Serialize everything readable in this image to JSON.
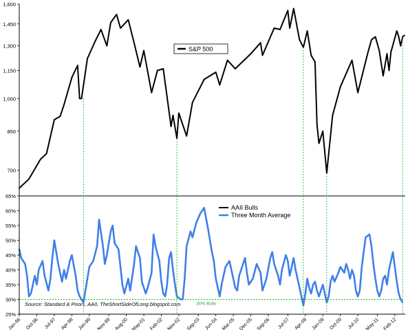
{
  "chart_data": [
    {
      "type": "line",
      "panel": "top",
      "title": "",
      "xlabel": "",
      "ylabel": "",
      "ylim": [
        620,
        1600
      ],
      "yscale": "log",
      "yticks": [
        700,
        850,
        1000,
        1150,
        1300,
        1450,
        1600
      ],
      "ytick_labels": [
        "700",
        "850",
        "1,000",
        "1,150",
        "1,300",
        "1,450",
        "1,600"
      ],
      "legend": "top-center",
      "series": [
        {
          "name": "S&P 500",
          "color": "#000000",
          "points": [
            [
              "1996-01",
              640
            ],
            [
              "1996-06",
              670
            ],
            [
              "1996-12",
              740
            ],
            [
              "1997-03",
              760
            ],
            [
              "1997-07",
              900
            ],
            [
              "1997-10",
              915
            ],
            [
              "1997-12",
              970
            ],
            [
              "1998-04",
              1110
            ],
            [
              "1998-07",
              1180
            ],
            [
              "1998-08",
              1000
            ],
            [
              "1998-09",
              1000
            ],
            [
              "1998-12",
              1220
            ],
            [
              "1999-04",
              1330
            ],
            [
              "1999-07",
              1410
            ],
            [
              "1999-10",
              1300
            ],
            [
              "1999-12",
              1460
            ],
            [
              "2000-03",
              1520
            ],
            [
              "2000-05",
              1420
            ],
            [
              "2000-09",
              1480
            ],
            [
              "2000-12",
              1320
            ],
            [
              "2001-03",
              1170
            ],
            [
              "2001-05",
              1270
            ],
            [
              "2001-09",
              1030
            ],
            [
              "2001-12",
              1150
            ],
            [
              "2002-03",
              1160
            ],
            [
              "2002-07",
              870
            ],
            [
              "2002-08",
              920
            ],
            [
              "2002-10",
              820
            ],
            [
              "2002-11",
              930
            ],
            [
              "2003-03",
              830
            ],
            [
              "2003-06",
              980
            ],
            [
              "2003-12",
              1100
            ],
            [
              "2004-06",
              1140
            ],
            [
              "2004-08",
              1070
            ],
            [
              "2004-12",
              1210
            ],
            [
              "2005-04",
              1160
            ],
            [
              "2005-12",
              1250
            ],
            [
              "2006-05",
              1320
            ],
            [
              "2006-06",
              1240
            ],
            [
              "2006-12",
              1420
            ],
            [
              "2007-03",
              1410
            ],
            [
              "2007-07",
              1550
            ],
            [
              "2007-08",
              1420
            ],
            [
              "2007-10",
              1565
            ],
            [
              "2008-01",
              1340
            ],
            [
              "2008-03",
              1290
            ],
            [
              "2008-05",
              1400
            ],
            [
              "2008-07",
              1240
            ],
            [
              "2008-09",
              1200
            ],
            [
              "2008-10",
              880
            ],
            [
              "2008-11",
              800
            ],
            [
              "2009-01",
              850
            ],
            [
              "2009-03",
              690
            ],
            [
              "2009-06",
              920
            ],
            [
              "2009-10",
              1060
            ],
            [
              "2010-04",
              1210
            ],
            [
              "2010-07",
              1030
            ],
            [
              "2010-12",
              1250
            ],
            [
              "2011-02",
              1340
            ],
            [
              "2011-04",
              1360
            ],
            [
              "2011-06",
              1270
            ],
            [
              "2011-08",
              1120
            ],
            [
              "2011-10",
              1250
            ],
            [
              "2011-11",
              1150
            ],
            [
              "2011-12",
              1260
            ],
            [
              "2012-03",
              1400
            ],
            [
              "2012-04",
              1360
            ],
            [
              "2012-05",
              1300
            ],
            [
              "2012-06",
              1360
            ],
            [
              "2012-07",
              1370
            ]
          ]
        }
      ]
    },
    {
      "type": "line",
      "panel": "bottom",
      "title": "",
      "xlabel": "",
      "ylabel": "",
      "ylim": [
        25,
        65
      ],
      "yticks": [
        25,
        30,
        35,
        40,
        45,
        50,
        55,
        60,
        65
      ],
      "ytick_labels": [
        "25%",
        "30%",
        "35%",
        "40%",
        "45%",
        "50%",
        "55%",
        "60%",
        "65%"
      ],
      "legend": "top-center",
      "annotations": [
        {
          "text": "30% Bulls",
          "color": "#22aa22",
          "x": "2003-08",
          "y": 30
        }
      ],
      "series": [
        {
          "name": "AAII Bulls",
          "color": "#000000",
          "points": []
        },
        {
          "name": "Three Month Average",
          "color": "#3f7fe8",
          "points": [
            [
              "1996-01",
              47
            ],
            [
              "1996-02",
              44
            ],
            [
              "1996-04",
              42
            ],
            [
              "1996-05",
              38
            ],
            [
              "1996-06",
              31
            ],
            [
              "1996-07",
              32
            ],
            [
              "1996-09",
              38
            ],
            [
              "1996-10",
              35
            ],
            [
              "1996-11",
              40
            ],
            [
              "1997-01",
              43
            ],
            [
              "1997-02",
              38
            ],
            [
              "1997-04",
              33
            ],
            [
              "1997-05",
              37
            ],
            [
              "1997-06",
              44
            ],
            [
              "1997-07",
              50
            ],
            [
              "1997-09",
              42
            ],
            [
              "1997-11",
              36
            ],
            [
              "1997-12",
              40
            ],
            [
              "1998-01",
              37
            ],
            [
              "1998-03",
              43
            ],
            [
              "1998-04",
              45
            ],
            [
              "1998-06",
              38
            ],
            [
              "1998-07",
              33
            ],
            [
              "1998-08",
              31
            ],
            [
              "1998-09",
              30
            ],
            [
              "1998-10",
              29
            ],
            [
              "1998-11",
              33
            ],
            [
              "1999-01",
              41
            ],
            [
              "1999-03",
              43
            ],
            [
              "1999-05",
              48
            ],
            [
              "1999-06",
              57
            ],
            [
              "1999-08",
              48
            ],
            [
              "1999-09",
              42
            ],
            [
              "1999-10",
              45
            ],
            [
              "1999-12",
              53
            ],
            [
              "2000-01",
              55
            ],
            [
              "2000-02",
              49
            ],
            [
              "2000-04",
              47
            ],
            [
              "2000-05",
              41
            ],
            [
              "2000-06",
              35
            ],
            [
              "2000-07",
              32
            ],
            [
              "2000-09",
              37
            ],
            [
              "2000-10",
              33
            ],
            [
              "2000-12",
              42
            ],
            [
              "2001-01",
              48
            ],
            [
              "2001-03",
              44
            ],
            [
              "2001-04",
              36
            ],
            [
              "2001-06",
              32
            ],
            [
              "2001-07",
              34
            ],
            [
              "2001-09",
              39
            ],
            [
              "2001-10",
              52
            ],
            [
              "2001-11",
              48
            ],
            [
              "2002-01",
              43
            ],
            [
              "2002-02",
              36
            ],
            [
              "2002-03",
              32
            ],
            [
              "2002-04",
              31
            ],
            [
              "2002-05",
              35
            ],
            [
              "2002-06",
              44
            ],
            [
              "2002-07",
              46
            ],
            [
              "2002-08",
              40
            ],
            [
              "2002-09",
              35
            ],
            [
              "2002-10",
              31
            ],
            [
              "2002-12",
              30
            ],
            [
              "2003-01",
              30
            ],
            [
              "2003-02",
              37
            ],
            [
              "2003-03",
              48
            ],
            [
              "2003-05",
              53
            ],
            [
              "2003-06",
              51
            ],
            [
              "2003-08",
              56
            ],
            [
              "2003-10",
              59
            ],
            [
              "2003-12",
              61
            ],
            [
              "2004-02",
              54
            ],
            [
              "2004-04",
              46
            ],
            [
              "2004-05",
              43
            ],
            [
              "2004-06",
              37
            ],
            [
              "2004-07",
              34
            ],
            [
              "2004-08",
              31
            ],
            [
              "2004-09",
              35
            ],
            [
              "2004-11",
              41
            ],
            [
              "2005-01",
              43
            ],
            [
              "2005-02",
              40
            ],
            [
              "2005-04",
              34
            ],
            [
              "2005-05",
              33
            ],
            [
              "2005-06",
              38
            ],
            [
              "2005-08",
              42
            ],
            [
              "2005-09",
              44
            ],
            [
              "2005-10",
              39
            ],
            [
              "2005-11",
              35
            ],
            [
              "2006-01",
              37
            ],
            [
              "2006-03",
              42
            ],
            [
              "2006-05",
              39
            ],
            [
              "2006-06",
              33
            ],
            [
              "2006-08",
              37
            ],
            [
              "2006-10",
              44
            ],
            [
              "2006-11",
              46
            ],
            [
              "2006-12",
              42
            ],
            [
              "2007-02",
              38
            ],
            [
              "2007-03",
              35
            ],
            [
              "2007-04",
              40
            ],
            [
              "2007-06",
              45
            ],
            [
              "2007-07",
              43
            ],
            [
              "2007-08",
              38
            ],
            [
              "2007-10",
              44
            ],
            [
              "2007-11",
              40
            ],
            [
              "2008-01",
              34
            ],
            [
              "2008-02",
              31
            ],
            [
              "2008-03",
              28
            ],
            [
              "2008-04",
              32
            ],
            [
              "2008-05",
              37
            ],
            [
              "2008-06",
              34
            ],
            [
              "2008-07",
              32
            ],
            [
              "2008-08",
              35
            ],
            [
              "2008-09",
              36
            ],
            [
              "2008-10",
              33
            ],
            [
              "2008-11",
              31
            ],
            [
              "2009-01",
              35
            ],
            [
              "2009-02",
              32
            ],
            [
              "2009-03",
              29
            ],
            [
              "2009-04",
              31
            ],
            [
              "2009-05",
              36
            ],
            [
              "2009-06",
              38
            ],
            [
              "2009-07",
              36
            ],
            [
              "2009-09",
              39
            ],
            [
              "2009-10",
              41
            ],
            [
              "2009-12",
              39
            ],
            [
              "2010-01",
              42
            ],
            [
              "2010-02",
              40
            ],
            [
              "2010-03",
              37
            ],
            [
              "2010-04",
              40
            ],
            [
              "2010-05",
              38
            ],
            [
              "2010-06",
              33
            ],
            [
              "2010-07",
              31
            ],
            [
              "2010-08",
              33
            ],
            [
              "2010-09",
              41
            ],
            [
              "2010-10",
              46
            ],
            [
              "2010-11",
              51
            ],
            [
              "2011-01",
              52
            ],
            [
              "2011-02",
              48
            ],
            [
              "2011-03",
              42
            ],
            [
              "2011-04",
              37
            ],
            [
              "2011-05",
              33
            ],
            [
              "2011-06",
              31
            ],
            [
              "2011-07",
              33
            ],
            [
              "2011-08",
              37
            ],
            [
              "2011-09",
              38
            ],
            [
              "2011-10",
              35
            ],
            [
              "2011-11",
              40
            ],
            [
              "2011-12",
              43
            ],
            [
              "2012-01",
              46
            ],
            [
              "2012-02",
              41
            ],
            [
              "2012-03",
              36
            ],
            [
              "2012-04",
              32
            ],
            [
              "2012-05",
              30
            ],
            [
              "2012-06",
              29
            ]
          ]
        }
      ]
    }
  ],
  "markers": [
    "1998-10",
    "2002-10",
    "2008-03",
    "2009-03",
    "2012-06"
  ],
  "x_axis": {
    "start": "1996-01",
    "end": "2012-07",
    "ticks": [
      {
        "date": "1996-01",
        "label": "Jan-96"
      },
      {
        "date": "1996-10",
        "label": "Oct-96"
      },
      {
        "date": "1997-07",
        "label": "Jul-97"
      },
      {
        "date": "1998-04",
        "label": "Apr-98"
      },
      {
        "date": "1999-01",
        "label": "Jan-99"
      },
      {
        "date": "1999-11",
        "label": "Nov-99"
      },
      {
        "date": "2000-08",
        "label": "Aug-00"
      },
      {
        "date": "2001-05",
        "label": "May-01"
      },
      {
        "date": "2002-02",
        "label": "Feb-02"
      },
      {
        "date": "2002-11",
        "label": "Nov-02"
      },
      {
        "date": "2003-09",
        "label": "Sep-03"
      },
      {
        "date": "2004-06",
        "label": "Jun-04"
      },
      {
        "date": "2005-03",
        "label": "Mar-05"
      },
      {
        "date": "2005-12",
        "label": "Dec-05"
      },
      {
        "date": "2006-09",
        "label": "Sep-06"
      },
      {
        "date": "2007-07",
        "label": "Jul-07"
      },
      {
        "date": "2008-04",
        "label": "Apr-08"
      },
      {
        "date": "2009-01",
        "label": "Jan-09"
      },
      {
        "date": "2009-10",
        "label": "Oct-09"
      },
      {
        "date": "2010-07",
        "label": "Jul-10"
      },
      {
        "date": "2011-05",
        "label": "May-11"
      },
      {
        "date": "2012-02",
        "label": "Feb-12"
      }
    ]
  },
  "source_text": "Source: Standard & Poors, AAII, TheShortSideOfLong.blogspot.com"
}
